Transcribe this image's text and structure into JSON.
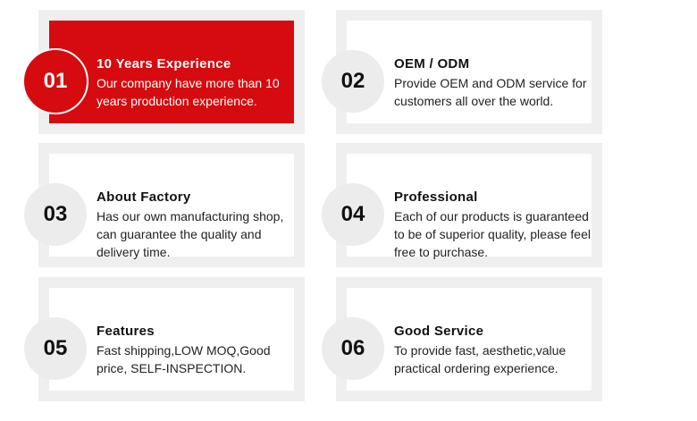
{
  "items": [
    {
      "number": "01",
      "title": "10 Years Experience",
      "desc": "Our company have more than 10 years production experience."
    },
    {
      "number": "02",
      "title": "OEM / ODM",
      "desc": "Provide OEM and ODM service for customers all over the world."
    },
    {
      "number": "03",
      "title": "About Factory",
      "desc": "Has our own manufacturing shop, can guarantee the quality and delivery time."
    },
    {
      "number": "04",
      "title": "Professional",
      "desc": "Each of our products is guaranteed to be of superior quality, please feel free to purchase."
    },
    {
      "number": "05",
      "title": "Features",
      "desc": "Fast shipping,LOW MOQ,Good price, SELF-INSPECTION."
    },
    {
      "number": "06",
      "title": "Good Service",
      "desc": "To provide fast, aesthetic,value practical ordering experience."
    }
  ],
  "colors": {
    "accent": "#d50b0f",
    "frame": "#efefef"
  }
}
